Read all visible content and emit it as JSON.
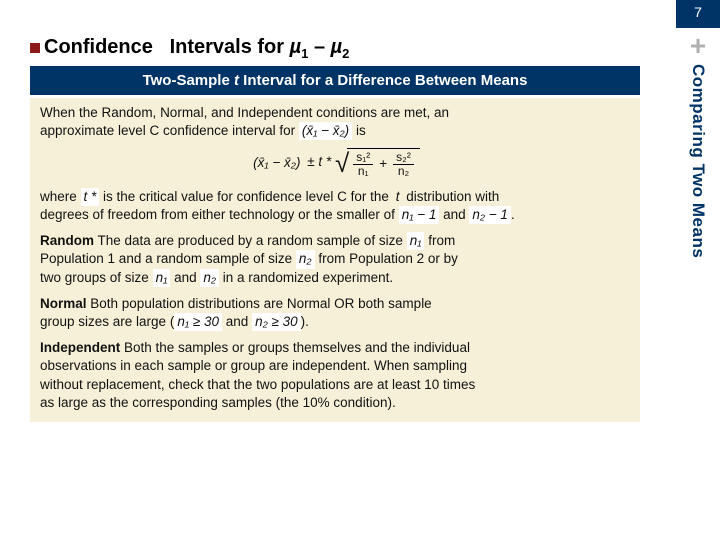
{
  "pageNumber": "7",
  "sidebar": {
    "plus": "+",
    "label": "Comparing Two Means"
  },
  "heading": {
    "prefix": "Confidence",
    "middle": "Intervals for",
    "mu1": "µ",
    "sub1": "1",
    "dash": "–",
    "mu2": "µ",
    "sub2": "2"
  },
  "banner": {
    "pre": "Two-Sample ",
    "ital": "t",
    "post": " Interval for a Difference Between Means"
  },
  "intro": {
    "line1": "When the Random, Normal, and Independent conditions are met, an",
    "line2pre": "approximate level C confidence interval for ",
    "paren": "(x̄₁ − x̄₂)",
    "line2post": " is"
  },
  "formula": {
    "leftParen": "(x̄₁ − x̄₂)",
    "pm": " ± ",
    "tstar": "t *",
    "s1sq": "s₁²",
    "n1": "n₁",
    "plus": "+",
    "s2sq": "s₂²",
    "n2": "n₂"
  },
  "where": {
    "pre": "where ",
    "tstar": "t *",
    "mid": " is the critical value for confidence level C for the ",
    "tdist": "t",
    "post1": " distribution with",
    "line2": "degrees of freedom from either technology or the smaller of ",
    "n1m1": "n₁ − 1",
    "and": " and ",
    "n2m1": "n₂ − 1",
    "dot": "."
  },
  "random": {
    "label": "Random",
    "t1": " The data are produced by a random sample of size ",
    "n1": "n₁",
    "t2": " from",
    "t3": "Population 1 and a random sample of size ",
    "n2": "n₂",
    "t4": " from Population 2 or by",
    "t5": "two groups of size ",
    "and": " and ",
    "t6": " in a randomized experiment."
  },
  "normal": {
    "label": "Normal",
    "t1": " Both population distributions are Normal OR both sample",
    "t2": "group sizes are large (",
    "n1geq": "n₁ ≥ 30",
    "and": " and ",
    "n2geq": "n₂ ≥ 30",
    "close": ")."
  },
  "independent": {
    "label": "Independent",
    "t1": " Both the samples or groups themselves and the individual",
    "t2": "observations in each sample or group are independent. When sampling",
    "t3": "without replacement, check that the two populations are at least 10 times",
    "t4": "as large as the corresponding samples (the 10% condition)."
  }
}
